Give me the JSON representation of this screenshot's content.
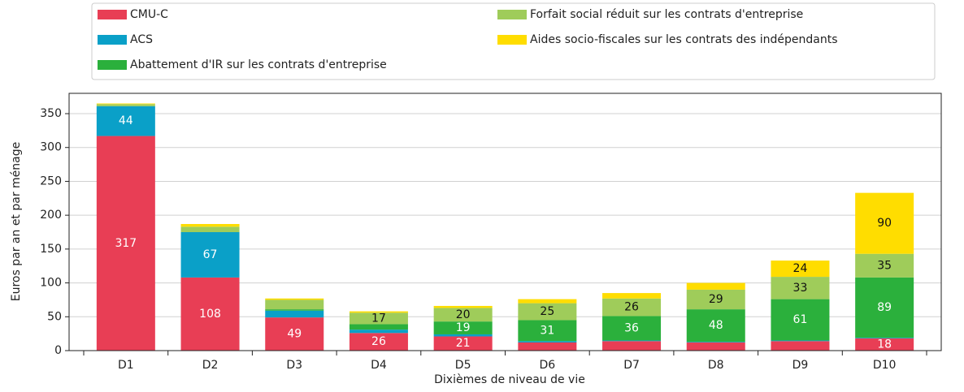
{
  "chart_data": {
    "type": "stacked_bar",
    "x_label": "Dixièmes de niveau de vie",
    "y_label": "Euros par an et par ménage",
    "categories": [
      "D1",
      "D2",
      "D3",
      "D4",
      "D5",
      "D6",
      "D7",
      "D8",
      "D9",
      "D10"
    ],
    "series": [
      {
        "name": "CMU-C",
        "color": "#e83e55",
        "values": [
          317,
          108,
          49,
          26,
          21,
          12,
          14,
          12,
          14,
          18
        ],
        "value_labels": [
          317,
          108,
          49,
          26,
          21,
          null,
          null,
          null,
          null,
          18
        ]
      },
      {
        "name": "ACS",
        "color": "#0aa0c8",
        "values": [
          44,
          67,
          10,
          5,
          3,
          2,
          1,
          1,
          1,
          1
        ],
        "value_labels": [
          44,
          67,
          null,
          null,
          null,
          null,
          null,
          null,
          null,
          null
        ]
      },
      {
        "name": "Abattement d'IR sur les contrats d'entreprise",
        "color": "#2bb03c",
        "values": [
          0,
          0,
          2,
          8,
          19,
          31,
          36,
          48,
          61,
          89
        ],
        "value_labels": [
          null,
          null,
          null,
          null,
          19,
          31,
          36,
          48,
          61,
          89
        ]
      },
      {
        "name": "Forfait social réduit sur les contrats d'entreprise",
        "color": "#9fcc5a",
        "values": [
          3,
          8,
          14,
          17,
          20,
          25,
          26,
          29,
          33,
          35
        ],
        "value_labels": [
          null,
          null,
          null,
          17,
          20,
          25,
          26,
          29,
          33,
          35
        ]
      },
      {
        "name": "Aides socio-fiscales sur les contrats des indépendants",
        "color": "#ffdd00",
        "values": [
          1,
          4,
          2,
          2,
          3,
          6,
          8,
          10,
          24,
          90
        ],
        "value_labels": [
          null,
          null,
          null,
          null,
          null,
          null,
          null,
          null,
          24,
          90
        ]
      }
    ],
    "ylim": [
      0,
      380
    ],
    "yticks": [
      0,
      50,
      100,
      150,
      200,
      250,
      300,
      350
    ],
    "grid": true
  }
}
